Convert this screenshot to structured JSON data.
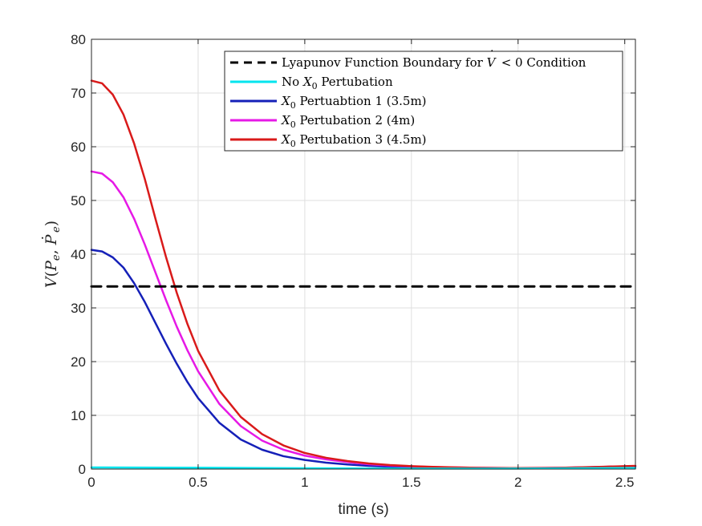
{
  "chart_data": {
    "type": "line",
    "title": "",
    "xlabel": "time (s)",
    "ylabel": "V(P_e, Ṗ_e)",
    "ylabel_parts": {
      "v": "V",
      "open": "(",
      "p1": "P",
      "sub1": "e",
      "comma": ",",
      "p2": "P",
      "dot": "˙",
      "sub2": "e",
      "close": ")"
    },
    "xlim": [
      0,
      2.55
    ],
    "ylim": [
      0,
      80
    ],
    "xticks": [
      0,
      0.5,
      1,
      1.5,
      2,
      2.5
    ],
    "xtick_labels": [
      "0",
      "0.5",
      "1",
      "1.5",
      "2",
      "2.5"
    ],
    "yticks": [
      0,
      10,
      20,
      30,
      40,
      50,
      60,
      70,
      80
    ],
    "ytick_labels": [
      "0",
      "10",
      "20",
      "30",
      "40",
      "50",
      "60",
      "70",
      "80"
    ],
    "grid": true,
    "legend_position": "top-right",
    "series": [
      {
        "name": "Lyapunov Function Boundary for V̇ < 0 Condition",
        "legend_parts": [
          "Lyapunov Function Boundary for ",
          "V",
          "˙",
          " < 0 Condition"
        ],
        "color": "#000000",
        "dashed": true,
        "x": [
          0,
          2.55
        ],
        "y": [
          34,
          34
        ]
      },
      {
        "name": "No X0 Pertubation",
        "legend_parts": [
          "No ",
          "X",
          "0",
          " Pertubation"
        ],
        "color": "#00e5ee",
        "dashed": false,
        "x": [
          0,
          0.5,
          1,
          1.5,
          2,
          2.55
        ],
        "y": [
          0.3,
          0.25,
          0.15,
          0.1,
          0.1,
          0.2
        ]
      },
      {
        "name": "X0 Pertuabtion 1 (3.5m)",
        "legend_parts": [
          "",
          "X",
          "0",
          " Pertuabtion 1 (3.5m)"
        ],
        "color": "#1520b8",
        "dashed": false,
        "x": [
          0,
          0.05,
          0.1,
          0.15,
          0.2,
          0.25,
          0.3,
          0.35,
          0.4,
          0.45,
          0.5,
          0.6,
          0.7,
          0.8,
          0.9,
          1.0,
          1.1,
          1.2,
          1.3,
          1.4,
          1.5,
          1.6,
          1.7,
          1.8,
          1.9,
          2.0,
          2.1,
          2.2,
          2.3,
          2.4,
          2.55
        ],
        "y": [
          40.8,
          40.5,
          39.4,
          37.5,
          34.6,
          31.1,
          27.2,
          23.3,
          19.6,
          16.2,
          13.2,
          8.6,
          5.5,
          3.6,
          2.4,
          1.7,
          1.2,
          0.85,
          0.6,
          0.45,
          0.35,
          0.28,
          0.22,
          0.18,
          0.15,
          0.15,
          0.17,
          0.22,
          0.3,
          0.4,
          0.55
        ]
      },
      {
        "name": "X0 Pertubation 2 (4m)",
        "legend_parts": [
          "",
          "X",
          "0",
          " Pertubation 2 (4m)"
        ],
        "color": "#e619e6",
        "dashed": false,
        "x": [
          0,
          0.05,
          0.1,
          0.15,
          0.2,
          0.25,
          0.3,
          0.35,
          0.4,
          0.45,
          0.5,
          0.6,
          0.7,
          0.8,
          0.9,
          1.0,
          1.1,
          1.2,
          1.3,
          1.4,
          1.5,
          1.6,
          1.7,
          1.8,
          1.9,
          2.0,
          2.1,
          2.2,
          2.3,
          2.4,
          2.55
        ],
        "y": [
          55.4,
          55.0,
          53.4,
          50.6,
          46.6,
          41.8,
          36.6,
          31.4,
          26.5,
          22.1,
          18.2,
          12.1,
          8.0,
          5.3,
          3.6,
          2.5,
          1.8,
          1.3,
          0.9,
          0.65,
          0.5,
          0.38,
          0.3,
          0.24,
          0.2,
          0.18,
          0.2,
          0.25,
          0.32,
          0.42,
          0.55
        ]
      },
      {
        "name": "X0 Pertubation 3 (4.5m)",
        "legend_parts": [
          "",
          "X",
          "0",
          " Pertubation 3 (4.5m)"
        ],
        "color": "#d91a1a",
        "dashed": false,
        "x": [
          0,
          0.05,
          0.1,
          0.15,
          0.2,
          0.25,
          0.3,
          0.35,
          0.4,
          0.45,
          0.5,
          0.6,
          0.7,
          0.8,
          0.9,
          1.0,
          1.1,
          1.2,
          1.3,
          1.4,
          1.5,
          1.6,
          1.7,
          1.8,
          1.9,
          2.0,
          2.1,
          2.2,
          2.3,
          2.4,
          2.55
        ],
        "y": [
          72.3,
          71.8,
          69.7,
          66.0,
          60.6,
          54.0,
          46.6,
          39.4,
          32.8,
          27.0,
          22.0,
          14.6,
          9.7,
          6.5,
          4.4,
          3.0,
          2.1,
          1.5,
          1.05,
          0.75,
          0.55,
          0.42,
          0.32,
          0.25,
          0.2,
          0.18,
          0.2,
          0.25,
          0.33,
          0.43,
          0.6
        ]
      }
    ]
  }
}
